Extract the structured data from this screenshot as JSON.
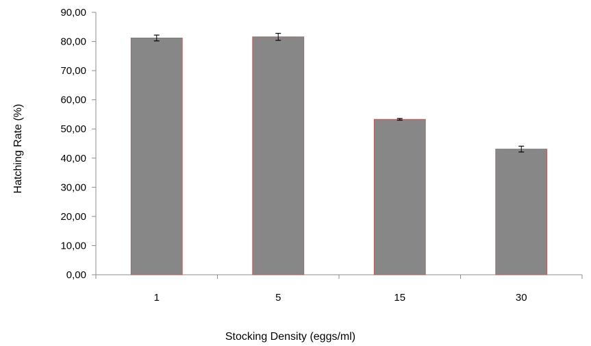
{
  "chart_data": {
    "type": "bar",
    "categories": [
      "1",
      "5",
      "15",
      "30"
    ],
    "values": [
      81.2,
      81.6,
      53.3,
      43.1
    ],
    "errors": [
      1.0,
      1.2,
      0.3,
      1.0
    ],
    "xlabel": "Stocking Density (eggs/ml)",
    "ylabel": "Hatching Rate (%)",
    "ylim": [
      0,
      90
    ],
    "yticks": [
      "0,00",
      "10,00",
      "20,00",
      "30,00",
      "40,00",
      "50,00",
      "60,00",
      "70,00",
      "80,00",
      "90,00"
    ],
    "grid": false,
    "legend": "none",
    "colors": {
      "bar": "#878787",
      "bar_edge": "#c0504d",
      "axis": "#8c8c8c",
      "error": "#000000"
    }
  }
}
